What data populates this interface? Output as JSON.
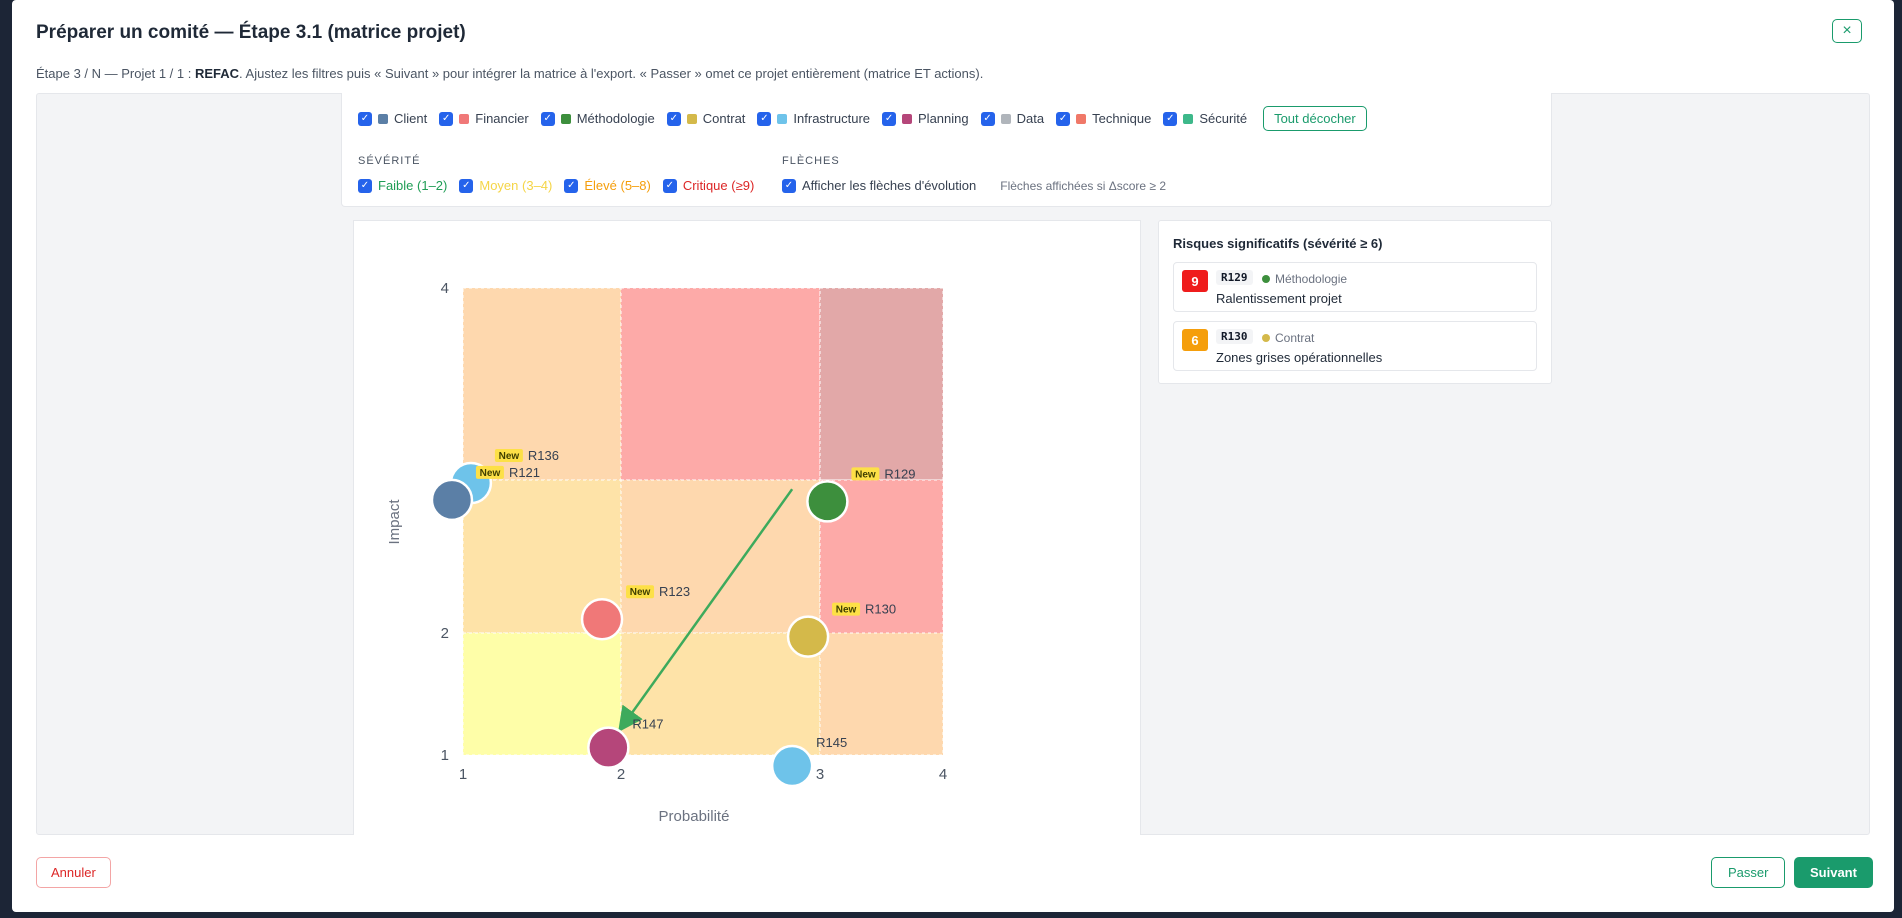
{
  "modal": {
    "title": "Préparer un comité — Étape 3.1 (matrice projet)",
    "close_icon": "×",
    "subtitle_before": "Étape 3 / N — Projet 1 / 1 : ",
    "subtitle_project": "REFAC",
    "subtitle_after": ". Ajustez les filtres puis « Suivant » pour intégrer la matrice à l'export. « Passer » omet ce projet entièrement (matrice ET actions)."
  },
  "filters": {
    "categories": [
      {
        "label": "Client",
        "color": "#5b7fa6"
      },
      {
        "label": "Financier",
        "color": "#f07878"
      },
      {
        "label": "Méthodologie",
        "color": "#3d8f3d"
      },
      {
        "label": "Contrat",
        "color": "#d4b94a"
      },
      {
        "label": "Infrastructure",
        "color": "#6ec3ea"
      },
      {
        "label": "Planning",
        "color": "#b5467a"
      },
      {
        "label": "Data",
        "color": "#b0b5bb"
      },
      {
        "label": "Technique",
        "color": "#f07868"
      },
      {
        "label": "Sécurité",
        "color": "#3db88a"
      }
    ],
    "uncheck_all": "Tout décocher",
    "severity_title": "SÉVÉRITÉ",
    "severity": [
      {
        "label": "Faible (1–2)",
        "color": "#1f9d55"
      },
      {
        "label": "Moyen (3–4)",
        "color": "#f5d547"
      },
      {
        "label": "Élevé (5–8)",
        "color": "#f59e0b"
      },
      {
        "label": "Critique (≥9)",
        "color": "#dc2626"
      }
    ],
    "arrows_title": "FLÈCHES",
    "arrows_label": "Afficher les flèches d'évolution",
    "arrows_note": "Flèches affichées si Δscore ≥ 2"
  },
  "chart_data": {
    "type": "scatter",
    "xlabel": "Probabilité",
    "ylabel": "Impact",
    "x_ticks": [
      "1",
      "2",
      "3",
      "4"
    ],
    "y_ticks": [
      "1",
      "2",
      "4"
    ],
    "xlim": [
      1,
      4
    ],
    "ylim": [
      1,
      4
    ],
    "zone_colors": {
      "low": "#fefea8",
      "medium": "#fee3a8",
      "high": "#fed8ae",
      "critical": "#fdaaa8",
      "max": "#e2a8a8"
    },
    "points": [
      {
        "id": "R136",
        "x": 1.05,
        "y": 2.98,
        "color": "#6ec3ea",
        "new": true
      },
      {
        "id": "R121",
        "x": 0.93,
        "y": 2.87,
        "color": "#5b7fa6",
        "new": true
      },
      {
        "id": "R129",
        "x": 3.06,
        "y": 2.86,
        "color": "#3d8f3d",
        "new": true
      },
      {
        "id": "R123",
        "x": 1.88,
        "y": 2.09,
        "color": "#f07878",
        "new": true
      },
      {
        "id": "R130",
        "x": 2.94,
        "y": 1.97,
        "color": "#d4b94a",
        "new": true
      },
      {
        "id": "R147",
        "x": 1.92,
        "y": 1.06,
        "color": "#b5467a",
        "new": false
      },
      {
        "id": "R145",
        "x": 2.86,
        "y": 0.91,
        "color": "#6ec3ea",
        "new": false
      }
    ],
    "new_badge": "New",
    "arrows": [
      {
        "from": [
          2.86,
          2.94
        ],
        "to": [
          2.0,
          1.22
        ],
        "color": "#3daa5c"
      }
    ]
  },
  "risks": {
    "title": "Risques significatifs (sévérité ≥ 6)",
    "items": [
      {
        "score": "9",
        "score_color": "#ef1c1c",
        "id": "R129",
        "category": "Méthodologie",
        "cat_color": "#3d8f3d",
        "name": "Ralentissement projet"
      },
      {
        "score": "6",
        "score_color": "#f59e0b",
        "id": "R130",
        "category": "Contrat",
        "cat_color": "#d4b94a",
        "name": "Zones grises opérationnelles"
      }
    ]
  },
  "footer": {
    "cancel": "Annuler",
    "skip": "Passer",
    "next": "Suivant"
  }
}
